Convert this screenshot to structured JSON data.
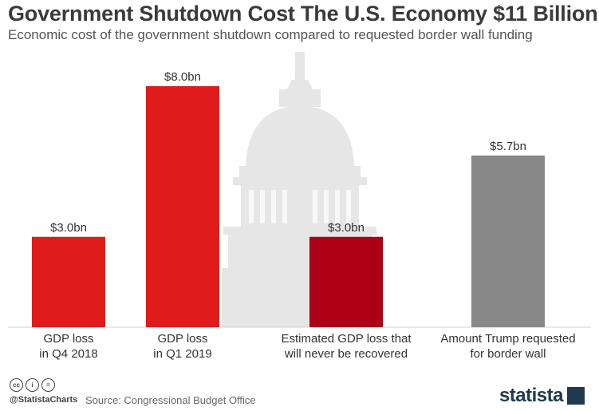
{
  "header": {
    "title": "Government Shutdown Cost The U.S. Economy $11 Billion",
    "subtitle": "Economic cost of the government shutdown compared to requested border wall funding"
  },
  "chart_data": {
    "type": "bar",
    "categories": [
      [
        "GDP loss",
        "in Q4 2018"
      ],
      [
        "GDP loss",
        "in Q1 2019"
      ],
      [
        "Estimated GDP loss that",
        "will never be recovered"
      ],
      [
        "Amount Trump requested",
        "for border wall"
      ]
    ],
    "values": [
      3.0,
      8.0,
      3.0,
      5.7
    ],
    "value_labels": [
      "$3.0bn",
      "$8.0bn",
      "$3.0bn",
      "$5.7bn"
    ],
    "colors": [
      "#e01b1b",
      "#e01b1b",
      "#ad0016",
      "#888888"
    ],
    "unit": "bn USD",
    "ylim": [
      0,
      8.0
    ],
    "grid": false,
    "title": "Government Shutdown Cost The U.S. Economy $11 Billion"
  },
  "footer": {
    "license_icons": [
      "cc-icon",
      "by-icon",
      "nd-icon"
    ],
    "license_glyphs": [
      "cc",
      "i",
      "="
    ],
    "handle": "@StatistaCharts",
    "source": "Source: Congressional Budget Office",
    "brand": "statista"
  },
  "colors": {
    "accent_red": "#e01b1b",
    "dark_red": "#ad0016",
    "grey_bar": "#888888",
    "background_capitol": "#e6e6e6",
    "brand": "#1f3a4d"
  }
}
